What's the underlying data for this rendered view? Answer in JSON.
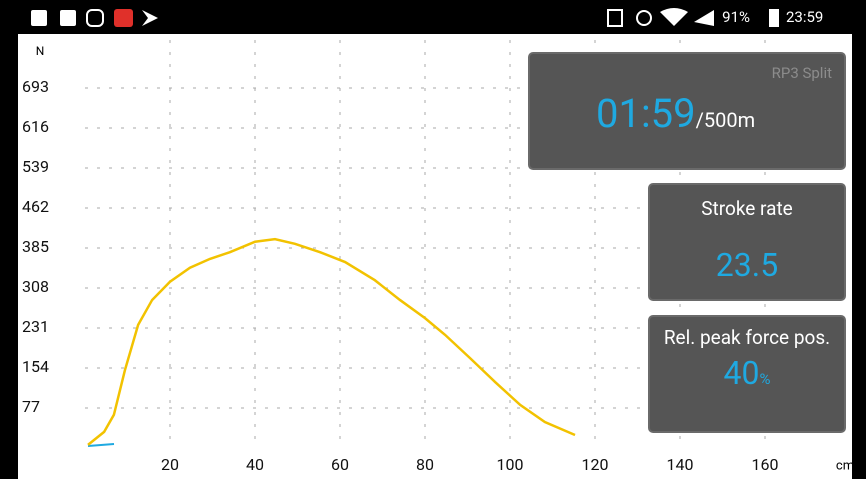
{
  "status_bar": {
    "battery": "91%",
    "time": "23:59"
  },
  "chart_data": {
    "type": "line",
    "y_label": "N",
    "x_label": "cm",
    "x": [
      0.7,
      4.5,
      6.8,
      9.4,
      12.5,
      15.8,
      20,
      24.7,
      29.4,
      34.1,
      40,
      44.7,
      49.4,
      55.3,
      61.2,
      68.2,
      74.1,
      80,
      84.7,
      90.6,
      96.5,
      102.4,
      108.2,
      115.3
    ],
    "values": [
      6,
      31,
      64,
      150,
      237,
      285,
      320,
      347,
      364,
      377,
      397,
      402,
      393,
      377,
      358,
      323,
      285,
      250,
      218,
      173,
      127,
      83,
      50,
      25
    ],
    "color": "#f2c200",
    "xlim": [
      0,
      180
    ],
    "xticks": [
      20,
      40,
      60,
      80,
      100,
      120,
      140,
      160
    ],
    "ylim": [
      0,
      770
    ],
    "yticks": [
      77,
      154,
      231,
      308,
      385,
      462,
      539,
      616,
      693
    ],
    "grid": true
  },
  "panels": [
    {
      "title": "RP3 Split",
      "value": "01:59",
      "unit": "/500m"
    },
    {
      "title": "Stroke rate",
      "value": "23.5"
    },
    {
      "title": "Rel. peak force pos.",
      "value": "40",
      "unit": "%"
    }
  ]
}
